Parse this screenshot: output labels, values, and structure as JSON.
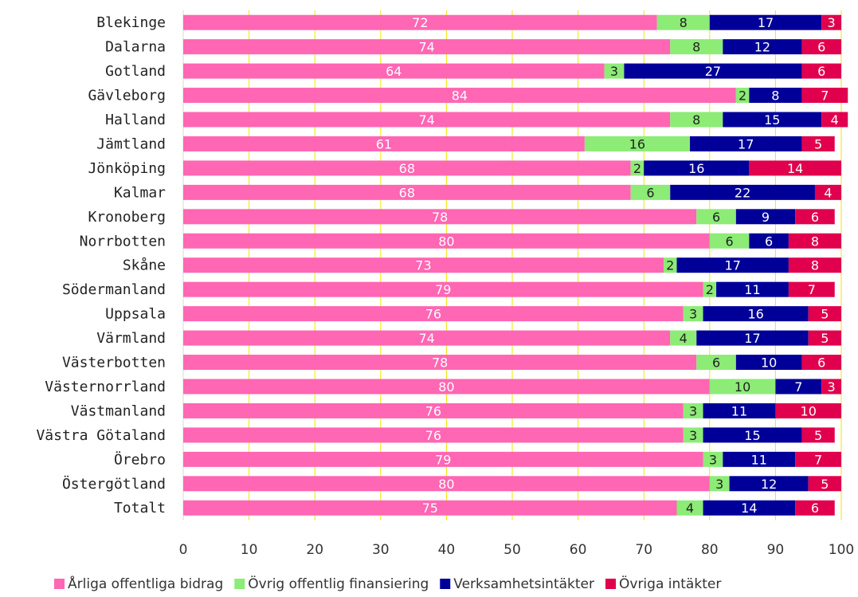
{
  "chart_data": {
    "type": "bar",
    "orientation": "horizontal",
    "stacked": true,
    "categories": [
      "Blekinge",
      "Dalarna",
      "Gotland",
      "Gävleborg",
      "Halland",
      "Jämtland",
      "Jönköping",
      "Kalmar",
      "Kronoberg",
      "Norrbotten",
      "Skåne",
      "Södermanland",
      "Uppsala",
      "Värmland",
      "Västerbotten",
      "Västernorrland",
      "Västmanland",
      "Västra Götaland",
      "Örebro",
      "Östergötland",
      "Totalt"
    ],
    "series": [
      {
        "name": "Årliga offentliga bidrag",
        "color": "#ff66b3",
        "label_color": "#ffffff",
        "values": [
          72,
          74,
          64,
          84,
          74,
          61,
          68,
          68,
          78,
          80,
          73,
          79,
          76,
          74,
          78,
          80,
          76,
          76,
          79,
          80,
          75
        ]
      },
      {
        "name": "Övrig offentlig finansiering",
        "color": "#8cec76",
        "label_color": "#222222",
        "values": [
          8,
          8,
          3,
          2,
          8,
          16,
          2,
          6,
          6,
          6,
          2,
          2,
          3,
          4,
          6,
          10,
          3,
          3,
          3,
          3,
          4
        ]
      },
      {
        "name": "Verksamhetsintäkter",
        "color": "#000099",
        "label_color": "#ffffff",
        "values": [
          17,
          12,
          27,
          8,
          15,
          17,
          16,
          22,
          9,
          6,
          17,
          11,
          16,
          17,
          10,
          7,
          11,
          15,
          11,
          12,
          14
        ]
      },
      {
        "name": "Övriga intäkter",
        "color": "#e0004d",
        "label_color": "#ffffff",
        "values": [
          3,
          6,
          6,
          7,
          4,
          5,
          14,
          4,
          6,
          8,
          8,
          7,
          5,
          5,
          6,
          3,
          10,
          5,
          7,
          5,
          6
        ]
      }
    ],
    "xlim": [
      0,
      100
    ],
    "x_ticks": [
      0,
      10,
      20,
      30,
      40,
      50,
      60,
      70,
      80,
      90,
      100
    ],
    "gridlines": true,
    "gridline_color": "#f2e600",
    "legend_position": "bottom"
  }
}
